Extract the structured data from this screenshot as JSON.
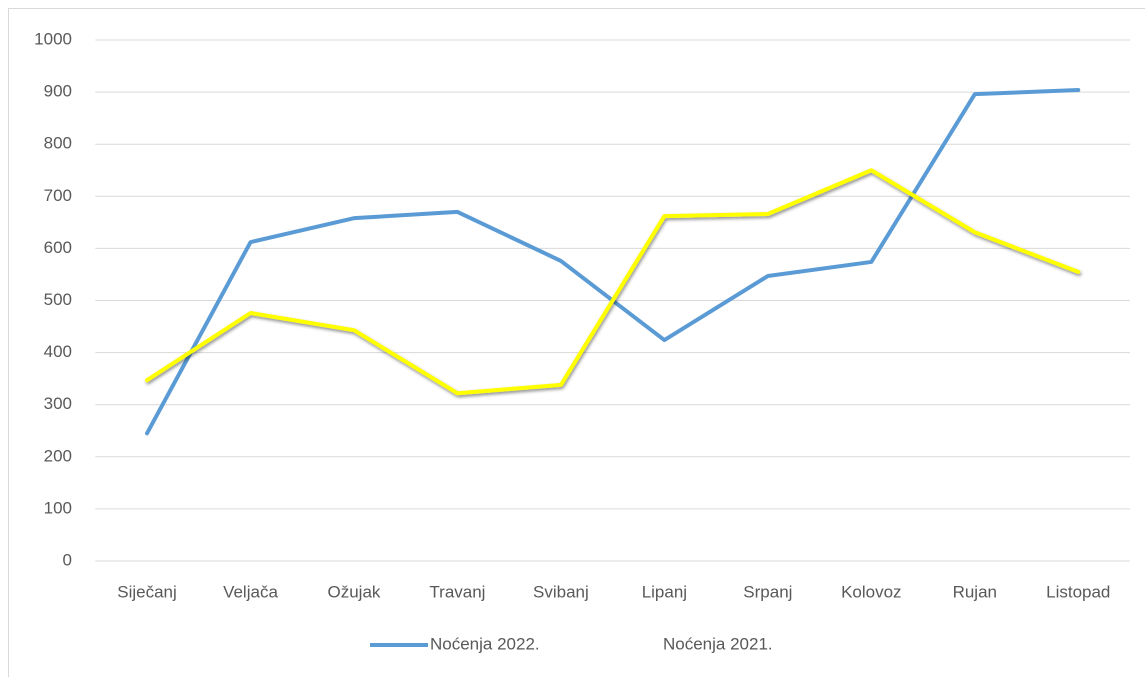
{
  "chart_data": {
    "type": "line",
    "categories": [
      "Siječanj",
      "Veljača",
      "Ožujak",
      "Travanj",
      "Svibanj",
      "Lipanj",
      "Srpanj",
      "Kolovoz",
      "Rujan",
      "Listopad"
    ],
    "series": [
      {
        "name": "Noćenja 2022.",
        "color": "#5b9bd5",
        "values": [
          245,
          612,
          658,
          670,
          576,
          424,
          547,
          574,
          896,
          904
        ]
      },
      {
        "name": "Noćenja 2021.",
        "color": "#ffff00",
        "values": [
          347,
          476,
          443,
          322,
          338,
          662,
          666,
          750,
          631,
          555
        ]
      }
    ],
    "ylim": [
      0,
      1000
    ],
    "yticks": [
      0,
      100,
      200,
      300,
      400,
      500,
      600,
      700,
      800,
      900,
      1000
    ],
    "grid": true,
    "legend": "bottom"
  }
}
